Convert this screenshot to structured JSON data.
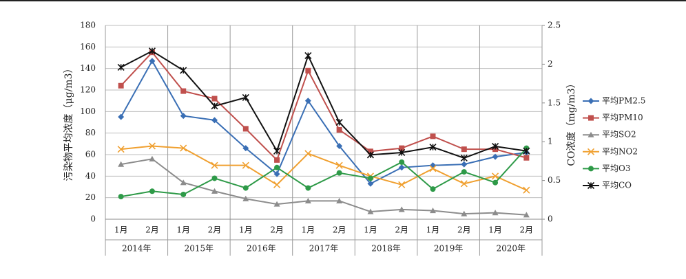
{
  "chart_data": {
    "type": "line",
    "y_label": "污染物平均浓度（μg/m3）",
    "y2_label": "CO浓度（mg/m3）",
    "categories": [
      "1月",
      "2月",
      "1月",
      "2月",
      "1月",
      "2月",
      "1月",
      "2月",
      "1月",
      "2月",
      "1月",
      "2月",
      "1月",
      "2月"
    ],
    "groups": [
      "2014年",
      "2015年",
      "2016年",
      "2017年",
      "2018年",
      "2019年",
      "2020年"
    ],
    "ylim": [
      0,
      180
    ],
    "yticks": [
      0,
      20,
      40,
      60,
      80,
      100,
      120,
      140,
      160,
      180
    ],
    "y2lim": [
      0,
      2.5
    ],
    "y2ticks": [
      0,
      0.5,
      1,
      1.5,
      2,
      2.5
    ],
    "grid": true,
    "legend": "right",
    "series": [
      {
        "name": "平均PM2.5",
        "color": "#3a6fb5",
        "marker": "diamond",
        "values": [
          95,
          147,
          96,
          92,
          66,
          42,
          110,
          68,
          33,
          48,
          50,
          51,
          58,
          62
        ]
      },
      {
        "name": "平均PM10",
        "color": "#c0504d",
        "marker": "square",
        "values": [
          124,
          155,
          119,
          112,
          84,
          55,
          138,
          83,
          63,
          66,
          77,
          65,
          65,
          57
        ]
      },
      {
        "name": "平均SO2",
        "color": "#8c8c8c",
        "marker": "triangle",
        "values": [
          51,
          56,
          34,
          26,
          19,
          14,
          17,
          17,
          7,
          9,
          8,
          5,
          6,
          4
        ]
      },
      {
        "name": "平均NO2",
        "color": "#f0a030",
        "marker": "x",
        "values": [
          65,
          68,
          66,
          50,
          50,
          32,
          61,
          50,
          40,
          32,
          47,
          33,
          40,
          27
        ]
      },
      {
        "name": "平均O3",
        "color": "#2e9a48",
        "marker": "circle",
        "values": [
          21,
          26,
          23,
          38,
          29,
          48,
          29,
          43,
          38,
          53,
          28,
          44,
          34,
          66
        ]
      },
      {
        "name": "平均CO",
        "color": "#111111",
        "marker": "star",
        "axis": "y2",
        "values": [
          1.96,
          2.17,
          1.92,
          1.46,
          1.57,
          0.88,
          2.11,
          1.25,
          0.83,
          0.86,
          0.93,
          0.79,
          0.94,
          0.88
        ]
      }
    ]
  }
}
